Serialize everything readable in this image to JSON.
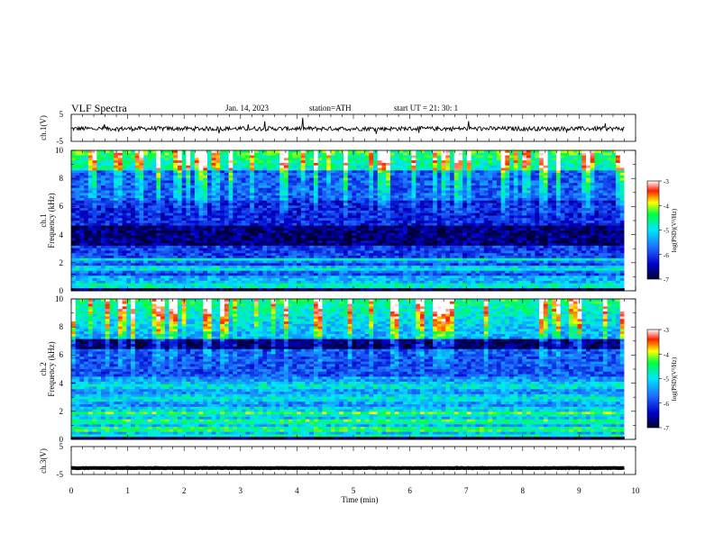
{
  "header": {
    "title": "VLF  Spectra",
    "date": "Jan. 14, 2023",
    "station": "station=ATH",
    "start": "start  UT  =   21: 30: 1"
  },
  "chart_data": [
    {
      "type": "line",
      "panel": "ch1-waveform",
      "ylabel": "ch.1(V)",
      "ylim": [
        -5,
        5
      ],
      "yticks": [
        "5",
        "-5"
      ],
      "baseline": -0.3,
      "color": "#000000"
    },
    {
      "type": "heatmap",
      "panel": "ch1-spectrogram",
      "ylabel_channel": "ch.1",
      "ylabel": "Frequency  (kHz)",
      "ylim": [
        0,
        10
      ],
      "yticks": [
        "0",
        "2",
        "4",
        "6",
        "8",
        "10"
      ],
      "colorbar": {
        "label": "log(PSD)(V²/Hz)",
        "range": [
          -7,
          -3
        ],
        "ticks": [
          "-3",
          "-4",
          "-5",
          "-6",
          "-7"
        ],
        "colors": [
          "#ffffff",
          "#ff0000",
          "#ffff00",
          "#00ff00",
          "#00ffff",
          "#0000ff",
          "#000030"
        ]
      }
    },
    {
      "type": "heatmap",
      "panel": "ch2-spectrogram",
      "ylabel_channel": "ch.2",
      "ylabel": "Frequency  (kHz)",
      "ylim": [
        0,
        10
      ],
      "yticks": [
        "0",
        "2",
        "4",
        "6",
        "8",
        "10"
      ],
      "colorbar": {
        "label": "log(PSD)(V²/Hz)",
        "range": [
          -7,
          -3
        ],
        "ticks": [
          "-3",
          "-4",
          "-5",
          "-6",
          "-7"
        ],
        "colors": [
          "#ffffff",
          "#ff0000",
          "#ffff00",
          "#00ff00",
          "#00ffff",
          "#0000ff",
          "#000030"
        ]
      }
    },
    {
      "type": "line",
      "panel": "ch3-waveform",
      "ylabel": "ch.3(V)",
      "ylim": [
        -5,
        5
      ],
      "yticks": [
        "5",
        "-5"
      ],
      "baseline": -2.7,
      "color": "#000000"
    }
  ],
  "xaxis": {
    "label": "Time  (min)",
    "range": [
      0,
      10
    ],
    "ticks": [
      "0",
      "1",
      "2",
      "3",
      "4",
      "5",
      "6",
      "7",
      "8",
      "9",
      "10"
    ],
    "data_end": 9.8
  }
}
